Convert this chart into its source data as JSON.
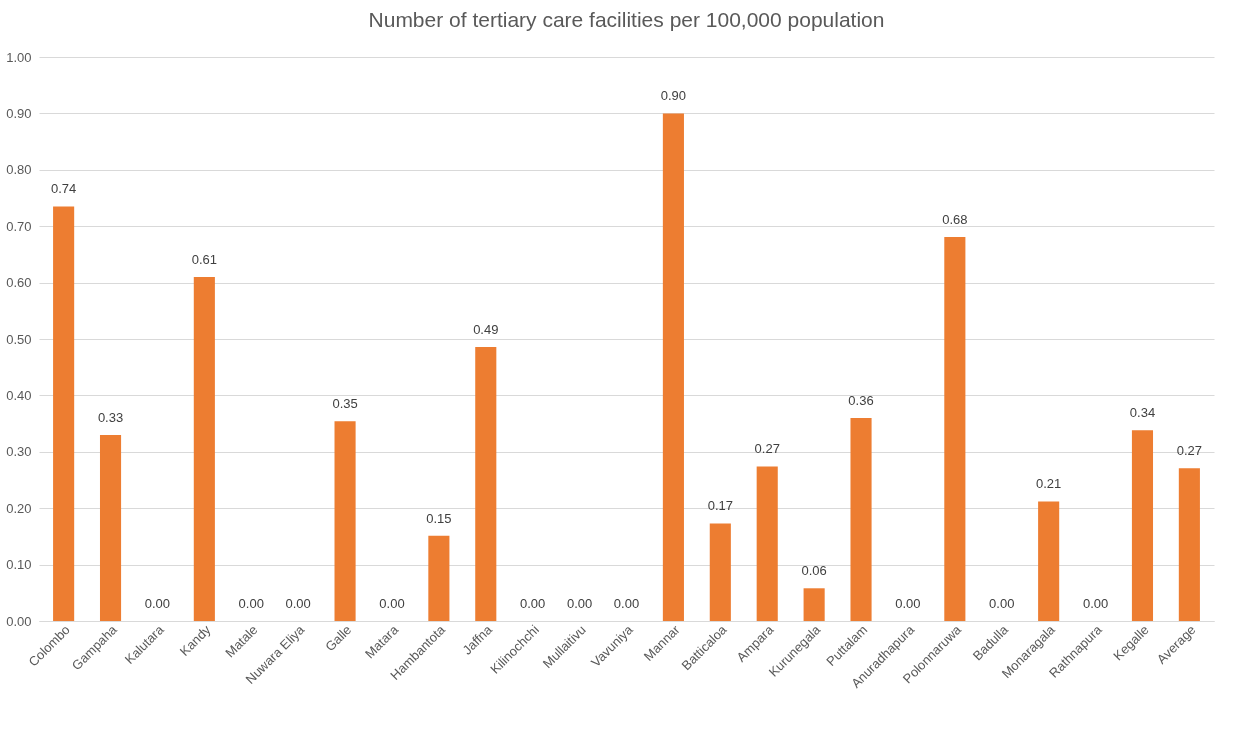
{
  "chart_data": {
    "type": "bar",
    "title": "Number of tertiary care facilities per 100,000 population",
    "categories": [
      "Colombo",
      "Gampaha",
      "Kalutara",
      "Kandy",
      "Matale",
      "Nuwara Eliya",
      "Galle",
      "Matara",
      "Hambantota",
      "Jaffna",
      "Kilinochchi",
      "Mullaitivu",
      "Vavuniya",
      "Mannar",
      "Batticaloa",
      "Ampara",
      "Kurunegala",
      "Puttalam",
      "Anuradhapura",
      "Polonnaruwa",
      "Badulla",
      "Monaragala",
      "Rathnapura",
      "Kegalle",
      "Average"
    ],
    "values": [
      0.735,
      0.33,
      0,
      0.61,
      0,
      0,
      0.354,
      0,
      0.151,
      0.486,
      0,
      0,
      0,
      0.9,
      0.173,
      0.274,
      0.058,
      0.36,
      0,
      0.681,
      0,
      0.212,
      0,
      0.338,
      0.271
    ],
    "value_labels": [
      "0.74",
      "0.33",
      "0.00",
      "0.61",
      "0.00",
      "0.00",
      "0.35",
      "0.00",
      "0.15",
      "0.49",
      "0.00",
      "0.00",
      "0.00",
      "0.90",
      "0.17",
      "0.27",
      "0.06",
      "0.36",
      "0.00",
      "0.68",
      "0.00",
      "0.21",
      "0.00",
      "0.34",
      "0.27"
    ],
    "color": "#ed7d31",
    "ylim": [
      0,
      1
    ],
    "yticks": [
      {
        "value": 0,
        "label": "0.00"
      },
      {
        "value": 0.1,
        "label": "0.10"
      },
      {
        "value": 0.2,
        "label": "0.20"
      },
      {
        "value": 0.3,
        "label": "0.30"
      },
      {
        "value": 0.4,
        "label": "0.40"
      },
      {
        "value": 0.5,
        "label": "0.50"
      },
      {
        "value": 0.6,
        "label": "0.60"
      },
      {
        "value": 0.7,
        "label": "0.70"
      },
      {
        "value": 0.8,
        "label": "0.80"
      },
      {
        "value": 0.9,
        "label": "0.90"
      },
      {
        "value": 1,
        "label": "1.00"
      }
    ],
    "grid": true
  }
}
